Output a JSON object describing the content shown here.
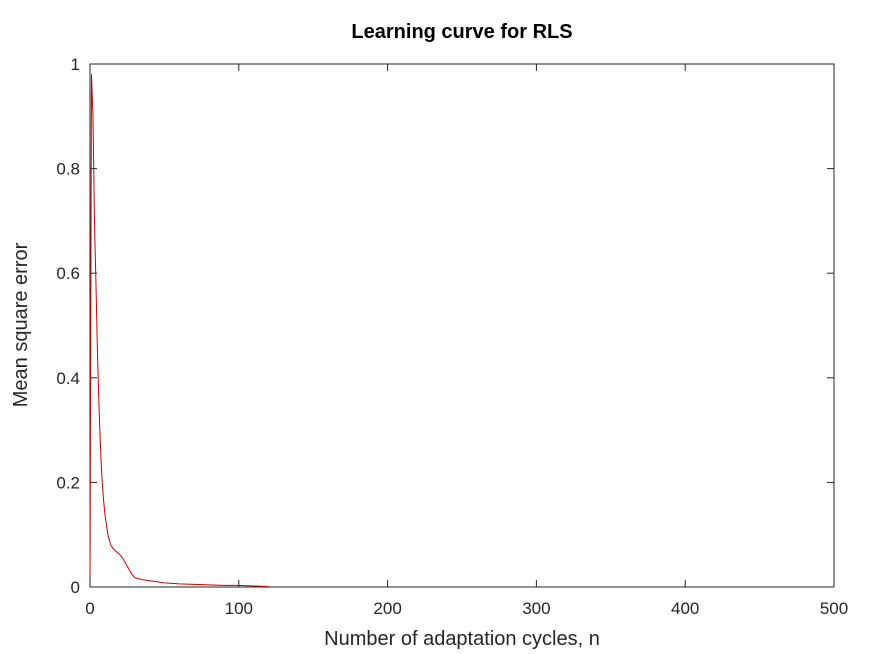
{
  "chart_data": {
    "type": "line",
    "title": "Learning curve for RLS",
    "xlabel": "Number of adaptation cycles, n",
    "ylabel": "Mean square error",
    "xlim": [
      0,
      500
    ],
    "ylim": [
      0,
      1
    ],
    "xticks": [
      "0",
      "100",
      "200",
      "300",
      "400",
      "500"
    ],
    "yticks": [
      "0",
      "0.2",
      "0.4",
      "0.6",
      "0.8",
      "1"
    ],
    "grid": false,
    "series": [
      {
        "color": "#cc0000",
        "x": [
          0,
          1,
          2,
          3,
          4,
          5,
          6,
          7,
          8,
          9,
          10,
          12,
          14,
          16,
          18,
          20,
          22,
          24,
          26,
          28,
          30,
          35,
          40,
          45,
          50,
          60,
          70,
          80,
          90,
          100,
          110,
          120
        ],
        "y": [
          0.02,
          0.98,
          0.9,
          0.7,
          0.58,
          0.45,
          0.35,
          0.27,
          0.21,
          0.17,
          0.14,
          0.1,
          0.08,
          0.072,
          0.067,
          0.062,
          0.055,
          0.045,
          0.035,
          0.025,
          0.018,
          0.014,
          0.012,
          0.01,
          0.008,
          0.006,
          0.005,
          0.004,
          0.003,
          0.003,
          0.002,
          0.001
        ]
      }
    ]
  }
}
